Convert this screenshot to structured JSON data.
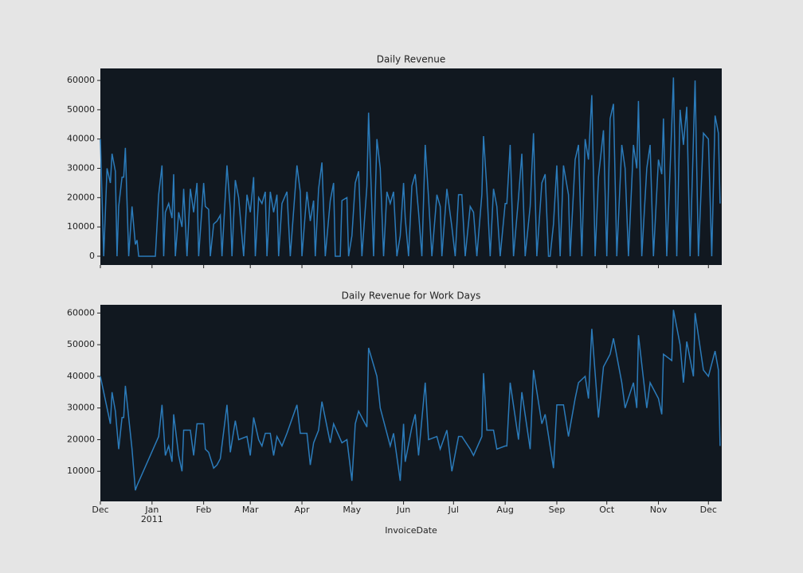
{
  "chart_data": [
    {
      "type": "line",
      "title": "Daily Revenue",
      "color": "#2b7bba",
      "background": "#111820",
      "xlim": [
        0,
        373
      ],
      "ylim": [
        -3000,
        64100
      ],
      "yticks": [
        0,
        10000,
        20000,
        30000,
        40000,
        50000,
        60000
      ],
      "x": [
        0,
        2,
        4,
        6,
        7,
        9,
        10,
        11,
        13,
        14,
        15,
        17,
        19,
        21,
        22,
        23,
        33,
        35,
        37,
        38,
        39,
        41,
        43,
        44,
        45,
        47,
        49,
        50,
        52,
        54,
        56,
        58,
        59,
        62,
        63,
        65,
        66,
        68,
        70,
        72,
        73,
        76,
        78,
        79,
        81,
        83,
        86,
        88,
        90,
        92,
        93,
        95,
        97,
        99,
        100,
        102,
        104,
        106,
        107,
        109,
        112,
        114,
        118,
        120,
        121,
        124,
        126,
        128,
        129,
        131,
        133,
        135,
        138,
        140,
        141,
        144,
        145,
        148,
        149,
        151,
        153,
        155,
        157,
        160,
        161,
        164,
        166,
        168,
        170,
        172,
        174,
        176,
        178,
        180,
        182,
        183,
        185,
        187,
        189,
        191,
        193,
        195,
        197,
        199,
        202,
        204,
        205,
        208,
        211,
        213,
        215,
        217,
        219,
        222,
        224,
        226,
        229,
        230,
        232,
        234,
        236,
        238,
        240,
        243,
        244,
        246,
        248,
        251,
        253,
        255,
        258,
        260,
        262,
        265,
        267,
        269,
        270,
        272,
        274,
        276,
        278,
        281,
        282,
        285,
        287,
        289,
        291,
        293,
        295,
        297,
        299,
        302,
        304,
        306,
        308,
        310,
        313,
        315,
        317,
        320,
        322,
        323,
        325,
        328,
        330,
        332,
        335,
        337,
        338,
        340,
        343,
        344,
        346,
        348,
        350,
        352,
        354,
        356,
        357,
        359,
        362,
        365,
        367,
        369,
        371,
        372
      ],
      "values": [
        40000,
        0,
        30000,
        25000,
        35000,
        29000,
        0,
        17000,
        27000,
        27000,
        37000,
        0,
        17000,
        4000,
        5500,
        0,
        0,
        21000,
        31000,
        0,
        15000,
        18000,
        13000,
        28000,
        0,
        15000,
        10000,
        23000,
        0,
        23000,
        15000,
        25000,
        0,
        25000,
        17000,
        16000,
        0,
        11000,
        12000,
        14000,
        0,
        31000,
        16000,
        0,
        26000,
        20000,
        0,
        21000,
        15000,
        27000,
        0,
        20000,
        18000,
        22000,
        0,
        22000,
        15000,
        21000,
        0,
        18000,
        22000,
        0,
        31000,
        22000,
        0,
        22000,
        12000,
        19000,
        0,
        23000,
        32000,
        0,
        19000,
        25000,
        0,
        0,
        19000,
        20000,
        0,
        7000,
        25000,
        29000,
        0,
        24000,
        49000,
        0,
        40000,
        30000,
        0,
        22000,
        18000,
        22000,
        0,
        7000,
        25000,
        13000,
        0,
        24000,
        28000,
        15000,
        0,
        38000,
        20000,
        0,
        21000,
        17000,
        0,
        23000,
        10000,
        0,
        21000,
        21000,
        0,
        17000,
        15000,
        0,
        21000,
        41000,
        23000,
        0,
        23000,
        17000,
        0,
        18000,
        18000,
        38000,
        0,
        20000,
        35000,
        0,
        17000,
        42000,
        0,
        25000,
        28000,
        0,
        0,
        11000,
        31000,
        0,
        31000,
        21000,
        0,
        33000,
        38000,
        0,
        40000,
        33000,
        55000,
        0,
        27000,
        43000,
        0,
        47000,
        52000,
        0,
        38000,
        30000,
        0,
        38000,
        30000,
        53000,
        0,
        30000,
        38000,
        0,
        33000,
        28000,
        47000,
        0,
        45000,
        61000,
        0,
        50000,
        38000,
        51000,
        0,
        40000,
        60000,
        0,
        42000,
        40000,
        0,
        48000,
        42000,
        18000
      ]
    },
    {
      "type": "line",
      "title": "Daily Revenue for Work Days",
      "xlabel": "InvoiceDate",
      "color": "#2b7bba",
      "background": "#111820",
      "xlim": [
        0,
        373
      ],
      "ylim": [
        500,
        62600
      ],
      "yticks": [
        10000,
        20000,
        30000,
        40000,
        50000,
        60000
      ],
      "xticks": [
        {
          "value": 0,
          "label": "Dec"
        },
        {
          "value": 31,
          "label": "Jan\n2011"
        },
        {
          "value": 62,
          "label": "Feb"
        },
        {
          "value": 90,
          "label": "Mar"
        },
        {
          "value": 121,
          "label": "Apr"
        },
        {
          "value": 151,
          "label": "May"
        },
        {
          "value": 182,
          "label": "Jun"
        },
        {
          "value": 212,
          "label": "Jul"
        },
        {
          "value": 243,
          "label": "Aug"
        },
        {
          "value": 274,
          "label": "Sep"
        },
        {
          "value": 304,
          "label": "Oct"
        },
        {
          "value": 335,
          "label": "Nov"
        },
        {
          "value": 365,
          "label": "Dec"
        }
      ],
      "x": [
        0,
        4,
        6,
        7,
        9,
        11,
        13,
        14,
        15,
        19,
        21,
        22,
        35,
        37,
        39,
        41,
        43,
        44,
        47,
        49,
        50,
        54,
        56,
        58,
        62,
        63,
        65,
        68,
        70,
        72,
        76,
        78,
        81,
        83,
        88,
        90,
        92,
        95,
        97,
        99,
        102,
        104,
        106,
        109,
        112,
        118,
        120,
        124,
        126,
        128,
        131,
        133,
        138,
        140,
        145,
        148,
        151,
        153,
        155,
        160,
        161,
        166,
        168,
        172,
        174,
        176,
        180,
        182,
        183,
        187,
        189,
        191,
        195,
        197,
        202,
        204,
        208,
        211,
        215,
        217,
        222,
        224,
        229,
        230,
        232,
        236,
        238,
        243,
        244,
        246,
        251,
        253,
        258,
        260,
        265,
        267,
        272,
        274,
        278,
        281,
        285,
        287,
        291,
        293,
        295,
        299,
        302,
        306,
        308,
        313,
        315,
        320,
        322,
        323,
        328,
        330,
        335,
        337,
        338,
        343,
        344,
        348,
        350,
        352,
        356,
        357,
        362,
        365,
        369,
        371,
        372
      ],
      "values": [
        40000,
        30000,
        25000,
        35000,
        29000,
        17000,
        27000,
        27000,
        37000,
        17000,
        4000,
        5500,
        21000,
        31000,
        15000,
        18000,
        13000,
        28000,
        15000,
        10000,
        23000,
        23000,
        15000,
        25000,
        25000,
        17000,
        16000,
        11000,
        12000,
        14000,
        31000,
        16000,
        26000,
        20000,
        21000,
        15000,
        27000,
        20000,
        18000,
        22000,
        22000,
        15000,
        21000,
        18000,
        22000,
        31000,
        22000,
        22000,
        12000,
        19000,
        23000,
        32000,
        19000,
        25000,
        19000,
        20000,
        7000,
        25000,
        29000,
        24000,
        49000,
        40000,
        30000,
        22000,
        18000,
        22000,
        7000,
        25000,
        13000,
        24000,
        28000,
        15000,
        38000,
        20000,
        21000,
        17000,
        23000,
        10000,
        21000,
        21000,
        17000,
        15000,
        21000,
        41000,
        23000,
        23000,
        17000,
        18000,
        18000,
        38000,
        20000,
        35000,
        17000,
        42000,
        25000,
        28000,
        11000,
        31000,
        31000,
        21000,
        33000,
        38000,
        40000,
        33000,
        55000,
        27000,
        43000,
        47000,
        52000,
        38000,
        30000,
        38000,
        30000,
        53000,
        30000,
        38000,
        33000,
        28000,
        47000,
        45000,
        61000,
        50000,
        38000,
        51000,
        40000,
        60000,
        42000,
        40000,
        48000,
        42000,
        18000
      ]
    }
  ]
}
